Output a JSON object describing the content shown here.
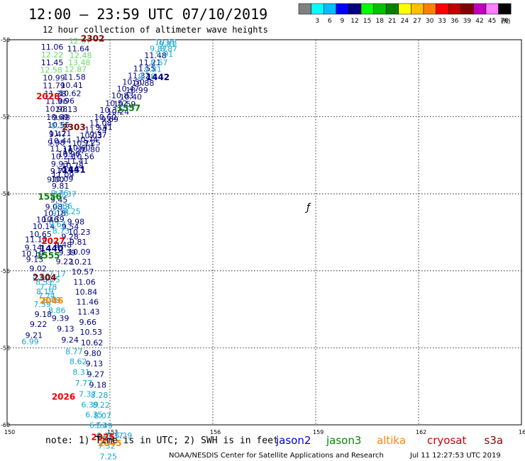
{
  "header": {
    "title": "12:00 – 23:59 UTC 07/10/2019",
    "subtitle": "12 hour collection of altimeter wave heights"
  },
  "legend": {
    "unit": "(ft)",
    "swatches": [
      {
        "label": "",
        "color": "#808080"
      },
      {
        "label": "3",
        "color": "#00ffff"
      },
      {
        "label": "6",
        "color": "#00bfff"
      },
      {
        "label": "9",
        "color": "#0000ff"
      },
      {
        "label": "12",
        "color": "#000080"
      },
      {
        "label": "15",
        "color": "#00ff00"
      },
      {
        "label": "18",
        "color": "#00c000"
      },
      {
        "label": "21",
        "color": "#008000"
      },
      {
        "label": "24",
        "color": "#ffff00"
      },
      {
        "label": "27",
        "color": "#ffc000"
      },
      {
        "label": "30",
        "color": "#ff8000"
      },
      {
        "label": "33",
        "color": "#ff0000"
      },
      {
        "label": "36",
        "color": "#c00000"
      },
      {
        "label": "39",
        "color": "#800000"
      },
      {
        "label": "42",
        "color": "#c000c0"
      },
      {
        "label": "45",
        "color": "#ff80ff"
      },
      {
        "label": "70",
        "color": "#000000"
      }
    ]
  },
  "map": {
    "lon_range": [
      150,
      165
    ],
    "lat_range": [
      -50,
      -60
    ],
    "lon_ticks": [
      "150",
      "153",
      "156",
      "159",
      "162",
      "165"
    ],
    "lat_ticks": [
      "-50",
      "-52",
      "-54",
      "-56",
      "-58",
      "-60"
    ],
    "grid": true,
    "series_colors": {
      "d": "#000080",
      "c": "#17a7cf",
      "g": "#66dd66",
      "G": "#008000",
      "R": "#ee0000",
      "M": "#880000",
      "O": "#ff8800"
    },
    "points": [
      {
        "text": "11.06",
        "lon": 150.99,
        "lat": -50.26,
        "s": "d"
      },
      {
        "text": "12.22",
        "lon": 150.99,
        "lat": -50.46,
        "s": "g"
      },
      {
        "text": "11.45",
        "lon": 150.99,
        "lat": -50.66,
        "s": "d"
      },
      {
        "text": "12.58",
        "lon": 150.96,
        "lat": -50.86,
        "s": "g"
      },
      {
        "text": "10.99",
        "lon": 151.04,
        "lat": -51.06,
        "s": "d"
      },
      {
        "text": "11.79",
        "lon": 151.04,
        "lat": -51.26,
        "s": "d"
      },
      {
        "text": "11.38",
        "lon": 151.08,
        "lat": -51.47,
        "s": "d"
      },
      {
        "text": "11.06",
        "lon": 151.12,
        "lat": -51.67,
        "s": "d"
      },
      {
        "text": "10.98",
        "lon": 151.11,
        "lat": -51.87,
        "s": "d"
      },
      {
        "text": "10.69",
        "lon": 151.14,
        "lat": -52.08,
        "s": "d"
      },
      {
        "text": "10.55",
        "lon": 151.18,
        "lat": -52.28,
        "s": "d"
      },
      {
        "text": "11.21",
        "lon": 151.22,
        "lat": -52.5,
        "s": "d"
      },
      {
        "text": "10.44",
        "lon": 151.22,
        "lat": -52.7,
        "s": "d"
      },
      {
        "text": "11.11",
        "lon": 151.25,
        "lat": -52.9,
        "s": "d"
      },
      {
        "text": "10.23",
        "lon": 151.28,
        "lat": -53.1,
        "s": "d"
      },
      {
        "text": "9.93",
        "lon": 151.28,
        "lat": -53.3,
        "s": "d"
      },
      {
        "text": "9.74",
        "lon": 151.26,
        "lat": -53.48,
        "s": "d"
      },
      {
        "text": "10.09",
        "lon": 151.28,
        "lat": -53.68,
        "s": "d"
      },
      {
        "text": "9.81",
        "lon": 151.3,
        "lat": -53.87,
        "s": "d"
      },
      {
        "text": "9.76",
        "lon": 151.28,
        "lat": -54.05,
        "s": "c"
      },
      {
        "text": "9.45",
        "lon": 151.26,
        "lat": -54.23,
        "s": "d"
      },
      {
        "text": "9.33",
        "lon": 151.32,
        "lat": -54.41,
        "s": "c"
      },
      {
        "text": "9.25",
        "lon": 151.3,
        "lat": -54.58,
        "s": "c"
      },
      {
        "text": "9.08",
        "lon": 151.11,
        "lat": -54.41,
        "s": "d"
      },
      {
        "text": "10.18",
        "lon": 151.06,
        "lat": -54.58,
        "s": "d"
      },
      {
        "text": "10.39",
        "lon": 151.02,
        "lat": -54.73,
        "s": "d"
      },
      {
        "text": "10.46",
        "lon": 150.85,
        "lat": -54.74,
        "s": "d"
      },
      {
        "text": "10.14",
        "lon": 150.74,
        "lat": -54.92,
        "s": "d"
      },
      {
        "text": "10.65",
        "lon": 150.65,
        "lat": -55.12,
        "s": "d"
      },
      {
        "text": "11.10",
        "lon": 150.52,
        "lat": -55.26,
        "s": "d"
      },
      {
        "text": "9.14",
        "lon": 150.51,
        "lat": -55.47,
        "s": "d"
      },
      {
        "text": "10.19",
        "lon": 150.42,
        "lat": -55.63,
        "s": "d"
      },
      {
        "text": "9.13",
        "lon": 150.55,
        "lat": -55.77,
        "s": "d"
      },
      {
        "text": "9.02",
        "lon": 150.65,
        "lat": -56.01,
        "s": "d"
      },
      {
        "text": "8.56",
        "lon": 150.74,
        "lat": -56.22,
        "s": "c"
      },
      {
        "text": "8.31",
        "lon": 150.83,
        "lat": -56.36,
        "s": "c"
      },
      {
        "text": "7.78",
        "lon": 150.95,
        "lat": -56.49,
        "s": "c"
      },
      {
        "text": "8.19",
        "lon": 150.85,
        "lat": -56.61,
        "s": "c"
      },
      {
        "text": "7.74",
        "lon": 150.9,
        "lat": -56.72,
        "s": "c"
      },
      {
        "text": "8.25",
        "lon": 151.04,
        "lat": -56.3,
        "s": "c"
      },
      {
        "text": "7.17",
        "lon": 151.21,
        "lat": -56.15,
        "s": "c"
      },
      {
        "text": "8.89",
        "lon": 151.06,
        "lat": -56.83,
        "s": "c"
      },
      {
        "text": "7.59",
        "lon": 150.77,
        "lat": -56.94,
        "s": "c"
      },
      {
        "text": "8.86",
        "lon": 151.2,
        "lat": -57.1,
        "s": "c"
      },
      {
        "text": "9.18",
        "lon": 150.8,
        "lat": -57.2,
        "s": "d"
      },
      {
        "text": "9.39",
        "lon": 151.3,
        "lat": -57.3,
        "s": "d"
      },
      {
        "text": "9.22",
        "lon": 150.66,
        "lat": -57.46,
        "s": "d"
      },
      {
        "text": "9.13",
        "lon": 151.45,
        "lat": -57.58,
        "s": "d"
      },
      {
        "text": "9.21",
        "lon": 150.53,
        "lat": -57.74,
        "s": "d"
      },
      {
        "text": "9.24",
        "lon": 151.58,
        "lat": -57.86,
        "s": "d"
      },
      {
        "text": "6.99",
        "lon": 150.42,
        "lat": -57.91,
        "s": "c"
      },
      {
        "text": "8.77",
        "lon": 151.7,
        "lat": -58.17,
        "s": "c"
      },
      {
        "text": "8.62",
        "lon": 151.82,
        "lat": -58.43,
        "s": "c"
      },
      {
        "text": "8.31",
        "lon": 151.91,
        "lat": -58.7,
        "s": "c"
      },
      {
        "text": "7.77",
        "lon": 151.98,
        "lat": -58.99,
        "s": "c"
      },
      {
        "text": "7.37",
        "lon": 152.09,
        "lat": -59.27,
        "s": "c"
      },
      {
        "text": "6.39",
        "lon": 152.16,
        "lat": -59.55,
        "s": "c"
      },
      {
        "text": "6.35",
        "lon": 152.28,
        "lat": -59.81,
        "s": "c"
      },
      {
        "text": "6.53",
        "lon": 152.4,
        "lat": -60.08,
        "s": "c"
      },
      {
        "text": "6.41",
        "lon": 152.6,
        "lat": -60.35,
        "s": "c"
      },
      {
        "text": "6.37",
        "lon": 152.88,
        "lat": -60.35,
        "s": "c"
      },
      {
        "text": "6.29",
        "lon": 153.14,
        "lat": -60.35,
        "s": "c"
      },
      {
        "text": "10.37",
        "lon": 151.37,
        "lat": -54.08,
        "s": "c"
      },
      {
        "text": "9.36",
        "lon": 151.4,
        "lat": -54.38,
        "s": "c"
      },
      {
        "text": "9.25",
        "lon": 151.64,
        "lat": -54.53,
        "s": "c"
      },
      {
        "text": "9.64",
        "lon": 151.22,
        "lat": -54.86,
        "s": "c"
      },
      {
        "text": "8.73",
        "lon": 151.32,
        "lat": -55.04,
        "s": "c"
      },
      {
        "text": "9.98",
        "lon": 151.75,
        "lat": -54.8,
        "s": "d"
      },
      {
        "text": "10.23",
        "lon": 151.78,
        "lat": -55.06,
        "s": "d"
      },
      {
        "text": "9.81",
        "lon": 151.82,
        "lat": -55.32,
        "s": "d"
      },
      {
        "text": "10.09",
        "lon": 151.78,
        "lat": -55.58,
        "s": "d"
      },
      {
        "text": "10.21",
        "lon": 151.82,
        "lat": -55.84,
        "s": "d"
      },
      {
        "text": "10.57",
        "lon": 151.88,
        "lat": -56.1,
        "s": "d"
      },
      {
        "text": "11.06",
        "lon": 151.93,
        "lat": -56.36,
        "s": "d"
      },
      {
        "text": "10.84",
        "lon": 151.98,
        "lat": -56.62,
        "s": "d"
      },
      {
        "text": "11.46",
        "lon": 152.02,
        "lat": -56.88,
        "s": "d"
      },
      {
        "text": "11.43",
        "lon": 152.05,
        "lat": -57.14,
        "s": "d"
      },
      {
        "text": "9.66",
        "lon": 152.1,
        "lat": -57.4,
        "s": "d"
      },
      {
        "text": "10.53",
        "lon": 152.12,
        "lat": -57.66,
        "s": "d"
      },
      {
        "text": "10.62",
        "lon": 152.15,
        "lat": -57.94,
        "s": "d"
      },
      {
        "text": "9.80",
        "lon": 152.24,
        "lat": -58.21,
        "s": "d"
      },
      {
        "text": "9.13",
        "lon": 152.29,
        "lat": -58.48,
        "s": "d"
      },
      {
        "text": "9.27",
        "lon": 152.33,
        "lat": -58.76,
        "s": "d"
      },
      {
        "text": "9.18",
        "lon": 152.39,
        "lat": -59.03,
        "s": "d"
      },
      {
        "text": "8.28",
        "lon": 152.44,
        "lat": -59.3,
        "s": "c"
      },
      {
        "text": "8.22",
        "lon": 152.49,
        "lat": -59.56,
        "s": "c"
      },
      {
        "text": "8.07",
        "lon": 152.53,
        "lat": -59.83,
        "s": "c"
      },
      {
        "text": "7.49",
        "lon": 152.57,
        "lat": -60.09,
        "s": "c"
      },
      {
        "text": "6.71",
        "lon": 152.62,
        "lat": -60.36,
        "s": "c"
      },
      {
        "text": "7.32",
        "lon": 152.65,
        "lat": -60.62,
        "s": "c"
      },
      {
        "text": "7.25",
        "lon": 152.7,
        "lat": -60.89,
        "s": "c"
      },
      {
        "text": "9.28",
        "lon": 151.58,
        "lat": -55.18,
        "s": "d"
      },
      {
        "text": "9.54",
        "lon": 151.59,
        "lat": -54.93,
        "s": "d"
      },
      {
        "text": "9.48",
        "lon": 151.38,
        "lat": -55.4,
        "s": "d"
      },
      {
        "text": "9.39",
        "lon": 151.5,
        "lat": -55.6,
        "s": "d"
      },
      {
        "text": "9.22",
        "lon": 151.42,
        "lat": -55.83,
        "s": "d"
      },
      {
        "text": "11.64",
        "lon": 151.75,
        "lat": -50.3,
        "s": "d"
      },
      {
        "text": "12.48",
        "lon": 151.82,
        "lat": -50.48,
        "s": "g"
      },
      {
        "text": "13.48",
        "lon": 151.78,
        "lat": -50.66,
        "s": "g"
      },
      {
        "text": "12.87",
        "lon": 151.67,
        "lat": -50.84,
        "s": "g"
      },
      {
        "text": "11.58",
        "lon": 151.64,
        "lat": -51.04,
        "s": "d"
      },
      {
        "text": "10.41",
        "lon": 151.56,
        "lat": -51.25,
        "s": "d"
      },
      {
        "text": "10.62",
        "lon": 151.51,
        "lat": -51.46,
        "s": "d"
      },
      {
        "text": "9.96",
        "lon": 151.46,
        "lat": -51.66,
        "s": "d"
      },
      {
        "text": "10.13",
        "lon": 151.4,
        "lat": -51.88,
        "s": "d"
      },
      {
        "text": "9.48",
        "lon": 151.33,
        "lat": -52.09,
        "s": "d"
      },
      {
        "text": "8.34",
        "lon": 151.28,
        "lat": -52.3,
        "s": "c"
      },
      {
        "text": "9.47",
        "lon": 151.22,
        "lat": -52.52,
        "s": "d"
      },
      {
        "text": "9.98",
        "lon": 151.18,
        "lat": -52.74,
        "s": "d"
      },
      {
        "text": "12.37",
        "lon": 151.8,
        "lat": -50.1,
        "s": "g"
      },
      {
        "text": "10.90",
        "lon": 151.48,
        "lat": -53.04,
        "s": "d"
      },
      {
        "text": "10.27",
        "lon": 151.63,
        "lat": -52.96,
        "s": "d"
      },
      {
        "text": "10.60",
        "lon": 151.78,
        "lat": -52.88,
        "s": "d"
      },
      {
        "text": "10.71",
        "lon": 151.89,
        "lat": -52.76,
        "s": "d"
      },
      {
        "text": "10.74",
        "lon": 152.0,
        "lat": -52.66,
        "s": "d"
      },
      {
        "text": "10.03",
        "lon": 152.12,
        "lat": -52.56,
        "s": "d"
      },
      {
        "text": "11.24",
        "lon": 152.26,
        "lat": -52.4,
        "s": "d"
      },
      {
        "text": "11.08",
        "lon": 152.4,
        "lat": -52.24,
        "s": "d"
      },
      {
        "text": "10.60",
        "lon": 152.54,
        "lat": -52.08,
        "s": "d"
      },
      {
        "text": "10.32",
        "lon": 152.7,
        "lat": -51.9,
        "s": "d"
      },
      {
        "text": "10.52",
        "lon": 152.86,
        "lat": -51.72,
        "s": "d"
      },
      {
        "text": "10.83",
        "lon": 153.04,
        "lat": -51.52,
        "s": "d"
      },
      {
        "text": "10.47",
        "lon": 153.2,
        "lat": -51.34,
        "s": "d"
      },
      {
        "text": "10.50",
        "lon": 153.36,
        "lat": -51.17,
        "s": "d"
      },
      {
        "text": "11.32",
        "lon": 153.52,
        "lat": -51.0,
        "s": "d"
      },
      {
        "text": "11.55",
        "lon": 153.68,
        "lat": -50.82,
        "s": "d"
      },
      {
        "text": "11.21",
        "lon": 153.84,
        "lat": -50.66,
        "s": "d"
      },
      {
        "text": "11.48",
        "lon": 154.0,
        "lat": -50.48,
        "s": "d"
      },
      {
        "text": "9.87",
        "lon": 154.16,
        "lat": -50.3,
        "s": "c"
      },
      {
        "text": "10.98",
        "lon": 154.3,
        "lat": -50.14,
        "s": "c"
      },
      {
        "text": "11.41",
        "lon": 151.72,
        "lat": -53.22,
        "s": "d"
      },
      {
        "text": "10.78",
        "lon": 151.58,
        "lat": -53.34,
        "s": "d"
      },
      {
        "text": "10.65",
        "lon": 151.44,
        "lat": -53.46,
        "s": "d"
      },
      {
        "text": "11.09",
        "lon": 151.3,
        "lat": -53.58,
        "s": "d"
      },
      {
        "text": "9.00",
        "lon": 151.16,
        "lat": -53.7,
        "s": "d"
      },
      {
        "text": "10.56",
        "lon": 151.89,
        "lat": -53.1,
        "s": "d"
      },
      {
        "text": "10.80",
        "lon": 152.06,
        "lat": -52.92,
        "s": "d"
      },
      {
        "text": "9.25",
        "lon": 152.22,
        "lat": -52.74,
        "s": "d"
      },
      {
        "text": "9.37",
        "lon": 152.4,
        "lat": -52.54,
        "s": "d"
      },
      {
        "text": "9.41",
        "lon": 152.57,
        "lat": -52.34,
        "s": "d"
      },
      {
        "text": "9.69",
        "lon": 152.74,
        "lat": -52.14,
        "s": "d"
      },
      {
        "text": "10.24",
        "lon": 152.91,
        "lat": -51.94,
        "s": "d"
      },
      {
        "text": "10.59",
        "lon": 153.1,
        "lat": -51.74,
        "s": "d"
      },
      {
        "text": "10.40",
        "lon": 153.28,
        "lat": -51.56,
        "s": "d"
      },
      {
        "text": "10.99",
        "lon": 153.46,
        "lat": -51.38,
        "s": "d"
      },
      {
        "text": "10.88",
        "lon": 153.64,
        "lat": -51.2,
        "s": "d"
      },
      {
        "text": "9.38",
        "lon": 153.82,
        "lat": -51.02,
        "s": "c"
      },
      {
        "text": "9.81",
        "lon": 154.0,
        "lat": -50.84,
        "s": "c"
      },
      {
        "text": "8.67",
        "lon": 154.18,
        "lat": -50.66,
        "s": "c"
      },
      {
        "text": "9.91",
        "lon": 154.34,
        "lat": -50.44,
        "s": "c"
      },
      {
        "text": "9.81",
        "lon": 154.42,
        "lat": -50.18,
        "s": "c"
      },
      {
        "text": "8.87",
        "lon": 154.46,
        "lat": -50.3,
        "s": "c"
      }
    ],
    "tracks": [
      {
        "label": "2302",
        "lon": 152.15,
        "lat": -50.05,
        "s": "M"
      },
      {
        "label": "2028",
        "lon": 150.85,
        "lat": -51.55,
        "s": "R"
      },
      {
        "label": "1442",
        "lon": 154.05,
        "lat": -51.05,
        "s": "d"
      },
      {
        "label": "1557",
        "lon": 153.2,
        "lat": -51.85,
        "s": "G"
      },
      {
        "label": "2303",
        "lon": 151.6,
        "lat": -52.35,
        "s": "M"
      },
      {
        "label": "1441",
        "lon": 151.6,
        "lat": -53.45,
        "s": "d"
      },
      {
        "label": "1556",
        "lon": 150.9,
        "lat": -54.15,
        "s": "G"
      },
      {
        "label": "2027",
        "lon": 151.0,
        "lat": -55.3,
        "s": "R"
      },
      {
        "label": "1440",
        "lon": 150.95,
        "lat": -55.5,
        "s": "d"
      },
      {
        "label": "1555",
        "lon": 150.85,
        "lat": -55.68,
        "s": "G"
      },
      {
        "label": "2304",
        "lon": 150.75,
        "lat": -56.25,
        "s": "M"
      },
      {
        "label": "2046",
        "lon": 150.95,
        "lat": -56.85,
        "s": "O"
      },
      {
        "label": "2026",
        "lon": 151.3,
        "lat": -59.35,
        "s": "R"
      },
      {
        "label": "2045",
        "lon": 152.65,
        "lat": -60.55,
        "s": "O"
      },
      {
        "label": "2025",
        "lon": 152.45,
        "lat": -60.4,
        "s": "R"
      }
    ]
  },
  "footer": {
    "note": "note:  1) Time is in UTC;  2) SWH is in feet",
    "missions": [
      {
        "name": "jason2",
        "color": "#0000dd"
      },
      {
        "name": "jason3",
        "color": "#008800"
      },
      {
        "name": "altika",
        "color": "#ff8800"
      },
      {
        "name": "cryosat",
        "color": "#cc0000"
      },
      {
        "name": "s3a",
        "color": "#880000"
      }
    ],
    "credit": "NOAA/NESDIS Center for Satellite Applications and Research",
    "timestamp": "Jul 11 12:27:53 UTC 2019"
  }
}
